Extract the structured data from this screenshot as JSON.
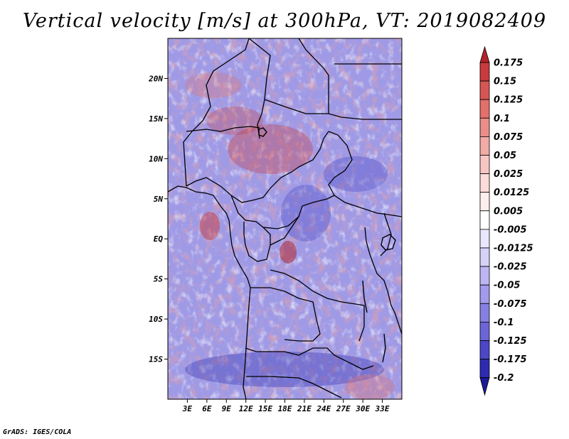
{
  "title": "Vertical velocity [m/s] at 300hPa, VT: 2019082409",
  "credit": "GrADS: IGES/COLA",
  "map": {
    "lon_range": [
      0,
      36
    ],
    "lat_range": [
      -20,
      25
    ],
    "x_ticks": [
      "3E",
      "6E",
      "9E",
      "12E",
      "15E",
      "18E",
      "21E",
      "24E",
      "27E",
      "30E",
      "33E"
    ],
    "x_tick_values": [
      3,
      6,
      9,
      12,
      15,
      18,
      21,
      24,
      27,
      30,
      33
    ],
    "y_ticks": [
      "20N",
      "15N",
      "10N",
      "5N",
      "EQ",
      "5S",
      "10S",
      "15S"
    ],
    "y_tick_values": [
      20,
      15,
      10,
      5,
      0,
      -5,
      -10,
      -15
    ],
    "field": "Vertical velocity",
    "units": "m/s",
    "level": "300hPa",
    "valid_time": "2019082409"
  },
  "colorbar": {
    "labels": [
      "0.175",
      "0.15",
      "0.125",
      "0.1",
      "0.075",
      "0.05",
      "0.025",
      "0.0125",
      "0.005",
      "-0.005",
      "-0.0125",
      "-0.025",
      "-0.05",
      "-0.075",
      "-0.1",
      "-0.125",
      "-0.175",
      "-0.2"
    ],
    "colors": [
      "#b3242b",
      "#c83a3c",
      "#d75552",
      "#e2706b",
      "#eb8d88",
      "#f2aba6",
      "#f7c6c3",
      "#fbdcda",
      "#fdeeed",
      "#ffffff",
      "#e9e7fb",
      "#d5d1f7",
      "#bdb6f2",
      "#a29aec",
      "#8680e3",
      "#6b65d8",
      "#4b47c6",
      "#2e2bb0",
      "#1e1a96"
    ]
  }
}
